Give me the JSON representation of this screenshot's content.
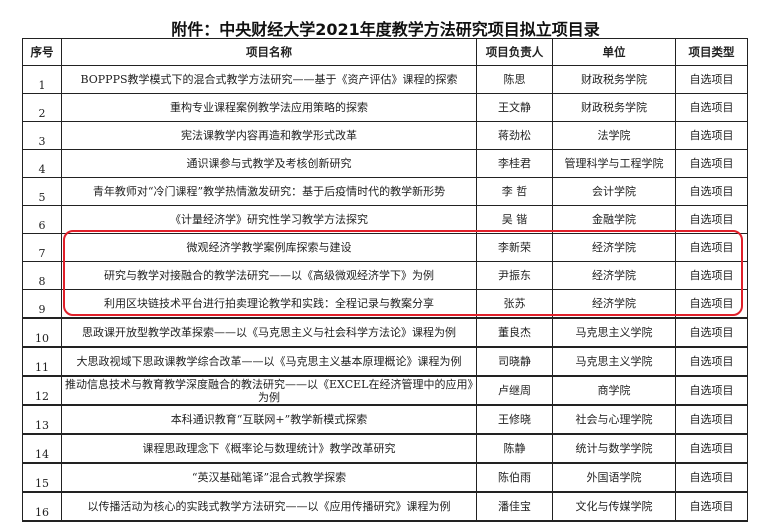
{
  "title": "附件：中央财经大学2021年度教学方法研究项目拟立项目录",
  "headers": [
    "序号",
    "项目名称",
    "项目负责人",
    "单位",
    "项目类型"
  ],
  "rows": [
    {
      "no": "1",
      "name": "BOPPPS教学模式下的混合式教学方法研究——基于《资产评估》课程的探索",
      "lead": "陈思",
      "unit": "财政税务学院",
      "type": "自选项目"
    },
    {
      "no": "2",
      "name": "重构专业课程案例教学法应用策略的探索",
      "lead": "王文静",
      "unit": "财政税务学院",
      "type": "自选项目"
    },
    {
      "no": "3",
      "name": "宪法课教学内容再造和教学形式改革",
      "lead": "蒋劲松",
      "unit": "法学院",
      "type": "自选项目"
    },
    {
      "no": "4",
      "name": "通识课参与式教学及考核创新研究",
      "lead": "李桂君",
      "unit": "管理科学与工程学院",
      "type": "自选项目"
    },
    {
      "no": "5",
      "name": "青年教师对“冷门课程”教学热情激发研究：基于后疫情时代的教学新形势",
      "lead": "李 哲",
      "unit": "会计学院",
      "type": "自选项目"
    },
    {
      "no": "6",
      "name": "《计量经济学》研究性学习教学方法探究",
      "lead": "吴 锴",
      "unit": "金融学院",
      "type": "自选项目"
    },
    {
      "no": "7",
      "name": "微观经济学教学案例库探索与建设",
      "lead": "李新荣",
      "unit": "经济学院",
      "type": "自选项目"
    },
    {
      "no": "8",
      "name": "研究与教学对接融合的教学法研究——以《高级微观经济学下》为例",
      "lead": "尹振东",
      "unit": "经济学院",
      "type": "自选项目"
    },
    {
      "no": "9",
      "name": "利用区块链技术平台进行拍卖理论教学和实践：全程记录与教案分享",
      "lead": "张苏",
      "unit": "经济学院",
      "type": "自选项目"
    },
    {
      "no": "10",
      "name": "思政课开放型教学改革探索——以《马克思主义与社会科学方法论》课程为例",
      "lead": "董良杰",
      "unit": "马克思主义学院",
      "type": "自选项目"
    },
    {
      "no": "11",
      "name": "大思政视域下思政课教学综合改革——以《马克思主义基本原理概论》课程为例",
      "lead": "司晓静",
      "unit": "马克思主义学院",
      "type": "自选项目"
    },
    {
      "no": "12",
      "name": "推动信息技术与教育教学深度融合的教法研究——以《EXCEL在经济管理中的应用》为例",
      "lead": "卢继周",
      "unit": "商学院",
      "type": "自选项目"
    },
    {
      "no": "13",
      "name": "本科通识教育“互联网+”教学新模式探索",
      "lead": "王修晓",
      "unit": "社会与心理学院",
      "type": "自选项目"
    },
    {
      "no": "14",
      "name": "课程思政理念下《概率论与数理统计》教学改革研究",
      "lead": "陈静",
      "unit": "统计与数学学院",
      "type": "自选项目"
    },
    {
      "no": "15",
      "name": "“英汉基础笔译”混合式教学探索",
      "lead": "陈伯雨",
      "unit": "外国语学院",
      "type": "自选项目"
    },
    {
      "no": "16",
      "name": "以传播活动为核心的实践式教学方法研究——以《应用传播研究》课程为例",
      "lead": "潘佳宝",
      "unit": "文化与传媒学院",
      "type": "自选项目"
    }
  ],
  "highlight": {
    "rows": [
      "7",
      "8",
      "9"
    ],
    "color": "#e0202a"
  }
}
